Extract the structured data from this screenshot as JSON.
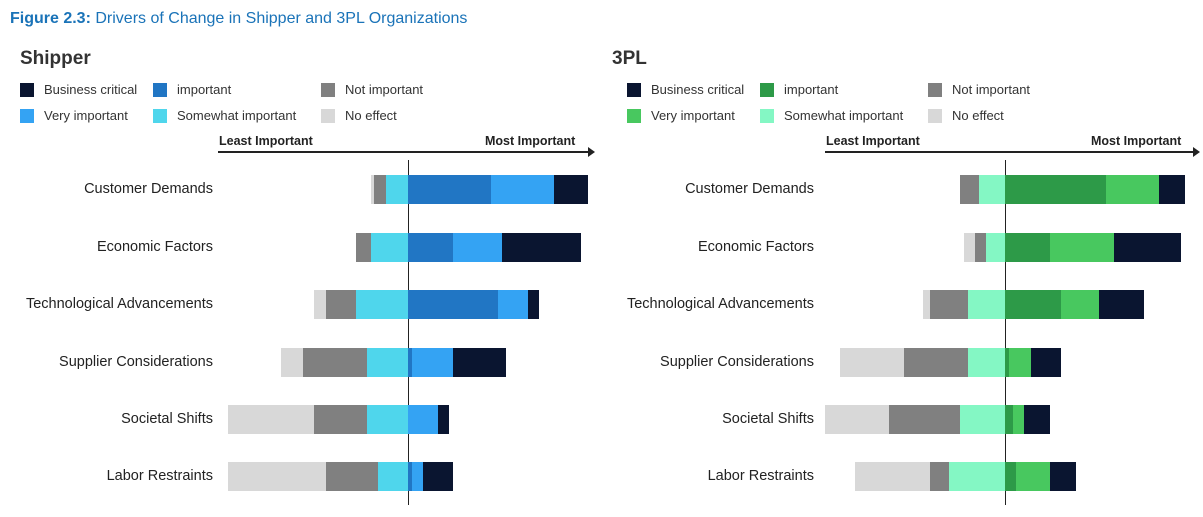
{
  "figure": {
    "label": "Figure 2.3:",
    "title": "Drivers of Change in Shipper and 3PL Organizations"
  },
  "legend_labels": [
    "Business critical",
    "important",
    "Not important",
    "Very important",
    "Somewhat important",
    "No effect"
  ],
  "axis": {
    "left_label": "Least Important",
    "right_label": "Most Important"
  },
  "categories": [
    "Customer Demands",
    "Economic Factors",
    "Technological Advancements",
    "Supplier Considerations",
    "Societal Shifts",
    "Labor Restraints"
  ],
  "chart_data": [
    {
      "type": "bar",
      "panel": "Shipper",
      "title": "Shipper",
      "stacked": "diverging",
      "categories": [
        "Customer Demands",
        "Economic Factors",
        "Technological Advancements",
        "Supplier Considerations",
        "Societal Shifts",
        "Labor Restraints"
      ],
      "negative_order": [
        "No effect",
        "Not important",
        "Somewhat important"
      ],
      "positive_order": [
        "important",
        "Very important",
        "Business critical"
      ],
      "series": [
        {
          "name": "No effect",
          "side": "negative",
          "color": "#d8d8d8",
          "values": [
            1,
            0,
            3,
            6,
            23,
            26
          ]
        },
        {
          "name": "Not important",
          "side": "negative",
          "color": "#808080",
          "values": [
            3,
            4,
            8,
            17,
            14,
            14
          ]
        },
        {
          "name": "Somewhat important",
          "side": "negative",
          "color": "#4fd6ec",
          "values": [
            6,
            10,
            14,
            11,
            11,
            8
          ]
        },
        {
          "name": "important",
          "side": "positive",
          "color": "#2176c4",
          "values": [
            22,
            12,
            24,
            1,
            0,
            1
          ]
        },
        {
          "name": "Very important",
          "side": "positive",
          "color": "#34a3f3",
          "values": [
            17,
            13,
            8,
            11,
            8,
            3
          ]
        },
        {
          "name": "Business critical",
          "side": "positive",
          "color": "#0a1530",
          "values": [
            9,
            21,
            3,
            14,
            3,
            8
          ]
        }
      ]
    },
    {
      "type": "bar",
      "panel": "3PL",
      "title": "3PL",
      "stacked": "diverging",
      "categories": [
        "Customer Demands",
        "Economic Factors",
        "Technological Advancements",
        "Supplier Considerations",
        "Societal Shifts",
        "Labor Restraints"
      ],
      "negative_order": [
        "No effect",
        "Not important",
        "Somewhat important"
      ],
      "positive_order": [
        "important",
        "Very important",
        "Business critical"
      ],
      "series": [
        {
          "name": "No effect",
          "side": "negative",
          "color": "#d8d8d8",
          "values": [
            0,
            3,
            2,
            17,
            17,
            20
          ]
        },
        {
          "name": "Not important",
          "side": "negative",
          "color": "#808080",
          "values": [
            5,
            3,
            10,
            17,
            19,
            5
          ]
        },
        {
          "name": "Somewhat important",
          "side": "negative",
          "color": "#84f7c4",
          "values": [
            7,
            5,
            10,
            10,
            12,
            15
          ]
        },
        {
          "name": "important",
          "side": "positive",
          "color": "#2d9a48",
          "values": [
            27,
            12,
            15,
            1,
            2,
            3
          ]
        },
        {
          "name": "Very important",
          "side": "positive",
          "color": "#48c85f",
          "values": [
            14,
            17,
            10,
            6,
            3,
            9
          ]
        },
        {
          "name": "Business critical",
          "side": "positive",
          "color": "#0a1530",
          "values": [
            7,
            18,
            12,
            8,
            7,
            7
          ]
        }
      ]
    }
  ]
}
